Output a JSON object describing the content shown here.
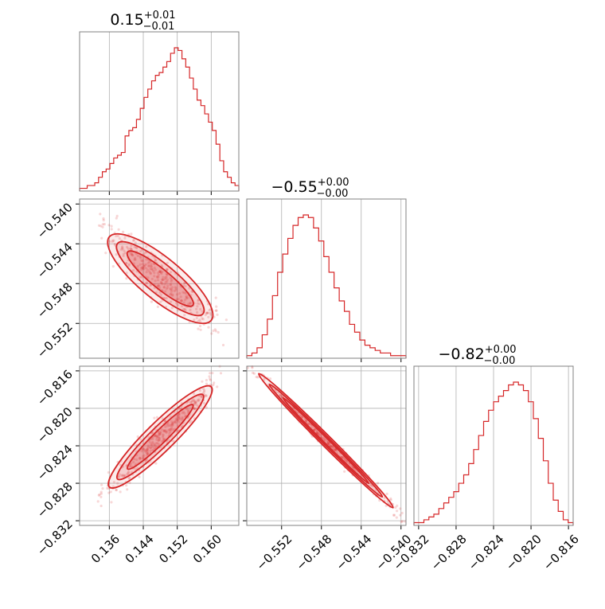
{
  "chart_data": {
    "type": "corner",
    "color": "#d62728",
    "parameters": [
      {
        "title": "0.15",
        "err_plus": "+0.01",
        "err_minus": "−0.01",
        "range": [
          0.129,
          0.1665
        ],
        "ticks": [
          {
            "v": 0.136,
            "label": "0.136"
          },
          {
            "v": 0.144,
            "label": "0.144"
          },
          {
            "v": 0.152,
            "label": "0.152"
          },
          {
            "v": 0.16,
            "label": "0.160"
          }
        ],
        "hist": [
          1,
          1,
          2,
          2,
          3,
          5,
          7,
          8,
          10,
          12,
          13,
          14,
          20,
          22,
          23,
          26,
          30,
          34,
          37,
          40,
          42,
          43,
          45,
          47,
          50,
          52,
          51,
          48,
          45,
          41,
          37,
          33,
          31,
          28,
          25,
          22,
          17,
          11,
          7,
          5,
          3,
          2
        ]
      },
      {
        "title": "−0.55",
        "err_plus": "+0.00",
        "err_minus": "−0.00",
        "range": [
          -0.5555,
          -0.5395
        ],
        "ticks": [
          {
            "v": -0.552,
            "label": "−0.552"
          },
          {
            "v": -0.548,
            "label": "−0.548"
          },
          {
            "v": -0.544,
            "label": "−0.544"
          },
          {
            "v": -0.54,
            "label": "−0.540"
          }
        ],
        "hist": [
          1,
          2,
          4,
          9,
          15,
          24,
          33,
          40,
          46,
          51,
          54,
          55,
          54,
          50,
          45,
          39,
          33,
          27,
          22,
          18,
          13,
          10,
          7,
          5,
          4,
          3,
          2,
          2,
          1,
          1,
          1
        ]
      },
      {
        "title": "−0.82",
        "err_plus": "+0.00",
        "err_minus": "−0.00",
        "range": [
          -0.8325,
          -0.8155
        ],
        "ticks": [
          {
            "v": -0.832,
            "label": "−0.832"
          },
          {
            "v": -0.828,
            "label": "−0.828"
          },
          {
            "v": -0.824,
            "label": "−0.824"
          },
          {
            "v": -0.82,
            "label": "−0.820"
          },
          {
            "v": -0.816,
            "label": "−0.816"
          }
        ],
        "hist": [
          1,
          1,
          2,
          3,
          4,
          6,
          8,
          10,
          12,
          15,
          18,
          22,
          27,
          32,
          37,
          41,
          44,
          46,
          48,
          50,
          51,
          50,
          48,
          44,
          38,
          31,
          23,
          15,
          9,
          5,
          2,
          1
        ]
      }
    ],
    "pairs": [
      {
        "x": 0,
        "y": 1,
        "line": [
          [
            0.136,
            -0.5433
          ],
          [
            0.16,
            -0.5517
          ]
        ],
        "spread": 0.0011
      },
      {
        "x": 0,
        "y": 2,
        "line": [
          [
            0.136,
            -0.8284
          ],
          [
            0.16,
            -0.8177
          ]
        ],
        "spread": 0.0008
      },
      {
        "x": 1,
        "y": 2,
        "line": [
          [
            -0.5543,
            -0.8163
          ],
          [
            -0.5408,
            -0.8306
          ]
        ],
        "spread": 0.0003
      }
    ]
  }
}
